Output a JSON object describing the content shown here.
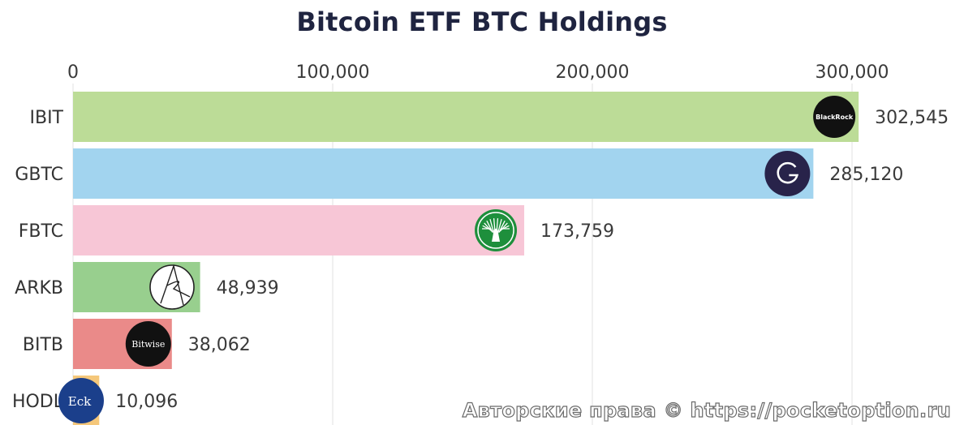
{
  "chart_data": {
    "type": "bar",
    "orientation": "horizontal",
    "title": "Bitcoin ETF BTC Holdings",
    "xlabel": "",
    "ylabel": "",
    "xlim": [
      0,
      340000
    ],
    "x_ticks": [
      0,
      100000,
      200000,
      300000
    ],
    "x_tick_labels": [
      "0",
      "100,000",
      "200,000",
      "300,000"
    ],
    "grid": true,
    "categories": [
      "IBIT",
      "GBTC",
      "FBTC",
      "ARKB",
      "BITB",
      "HODL"
    ],
    "values": [
      302545,
      285120,
      173759,
      48939,
      38062,
      10096
    ],
    "value_labels": [
      "302,545",
      "285,120",
      "173,759",
      "48,939",
      "38,062",
      "10,096"
    ],
    "colors": [
      "#bcdc97",
      "#a2d4ef",
      "#f7c6d6",
      "#98cf8e",
      "#ea8a89",
      "#f5c77a"
    ],
    "logos": [
      {
        "icon": "blackrock-logo",
        "text": "BlackRock"
      },
      {
        "icon": "grayscale-logo",
        "text": ""
      },
      {
        "icon": "fidelity-logo",
        "text": ""
      },
      {
        "icon": "ark-invest-logo",
        "text": ""
      },
      {
        "icon": "bitwise-logo",
        "text": "Bitwise"
      },
      {
        "icon": "vaneck-logo",
        "text": "Eck"
      }
    ]
  },
  "watermark": "Авторские права © https://pocketoption.ru"
}
